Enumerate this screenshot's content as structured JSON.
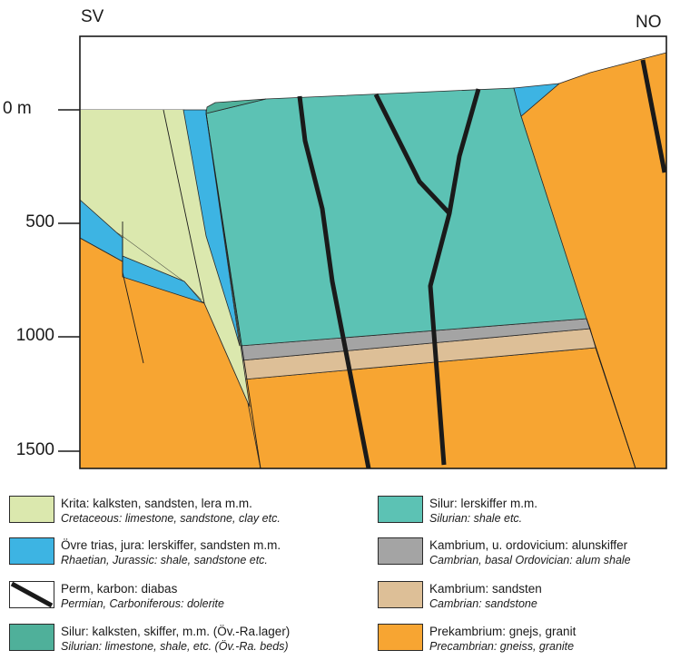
{
  "directions": {
    "left": "SV",
    "right": "NO"
  },
  "depth_axis": {
    "ticks": [
      {
        "value": 0,
        "label": "0  m"
      },
      {
        "value": 500,
        "label": "500"
      },
      {
        "value": 1000,
        "label": "1000"
      },
      {
        "value": 1500,
        "label": "1500"
      }
    ]
  },
  "colors": {
    "cretaceous": "#dbe8ae",
    "rhaetian_jurassic": "#3db4e3",
    "dolerite": "#1a1a1a",
    "silurian_limestone": "#4fb09a",
    "silurian_shale": "#5cc2b4",
    "alum_shale": "#a4a4a4",
    "cambrian_sandstone": "#ddbf97",
    "precambrian": "#f7a532"
  },
  "legend": [
    {
      "unit": "cretaceous",
      "sv": "Krita: kalksten, sandsten, lera m.m.",
      "en": "Cretaceous: limestone, sandstone, clay etc."
    },
    {
      "unit": "rhaetian_jurassic",
      "sv": "Övre trias, jura: lerskiffer, sandsten m.m.",
      "en": "Rhaetian, Jurassic: shale, sandstone etc."
    },
    {
      "unit": "dolerite",
      "sv": "Perm, karbon: diabas",
      "en": "Permian, Carboniferous: dolerite"
    },
    {
      "unit": "silurian_limestone",
      "sv": "Silur: kalksten, skiffer, m.m. (Öv.-Ra.lager)",
      "en": "Silurian: limestone, shale, etc. (Öv.-Ra. beds)"
    },
    {
      "unit": "silurian_shale",
      "sv": "Silur: lerskiffer m.m.",
      "en": "Silurian: shale etc."
    },
    {
      "unit": "alum_shale",
      "sv": "Kambrium, u. ordovicium: alunskiffer",
      "en": "Cambrian, basal Ordovician: alum shale"
    },
    {
      "unit": "cambrian_sandstone",
      "sv": "Kambrium: sandsten",
      "en": "Cambrian: sandstone"
    },
    {
      "unit": "precambrian",
      "sv": "Prekambrium: gnejs, granit",
      "en": "Precambrian: gneiss, granite"
    }
  ]
}
